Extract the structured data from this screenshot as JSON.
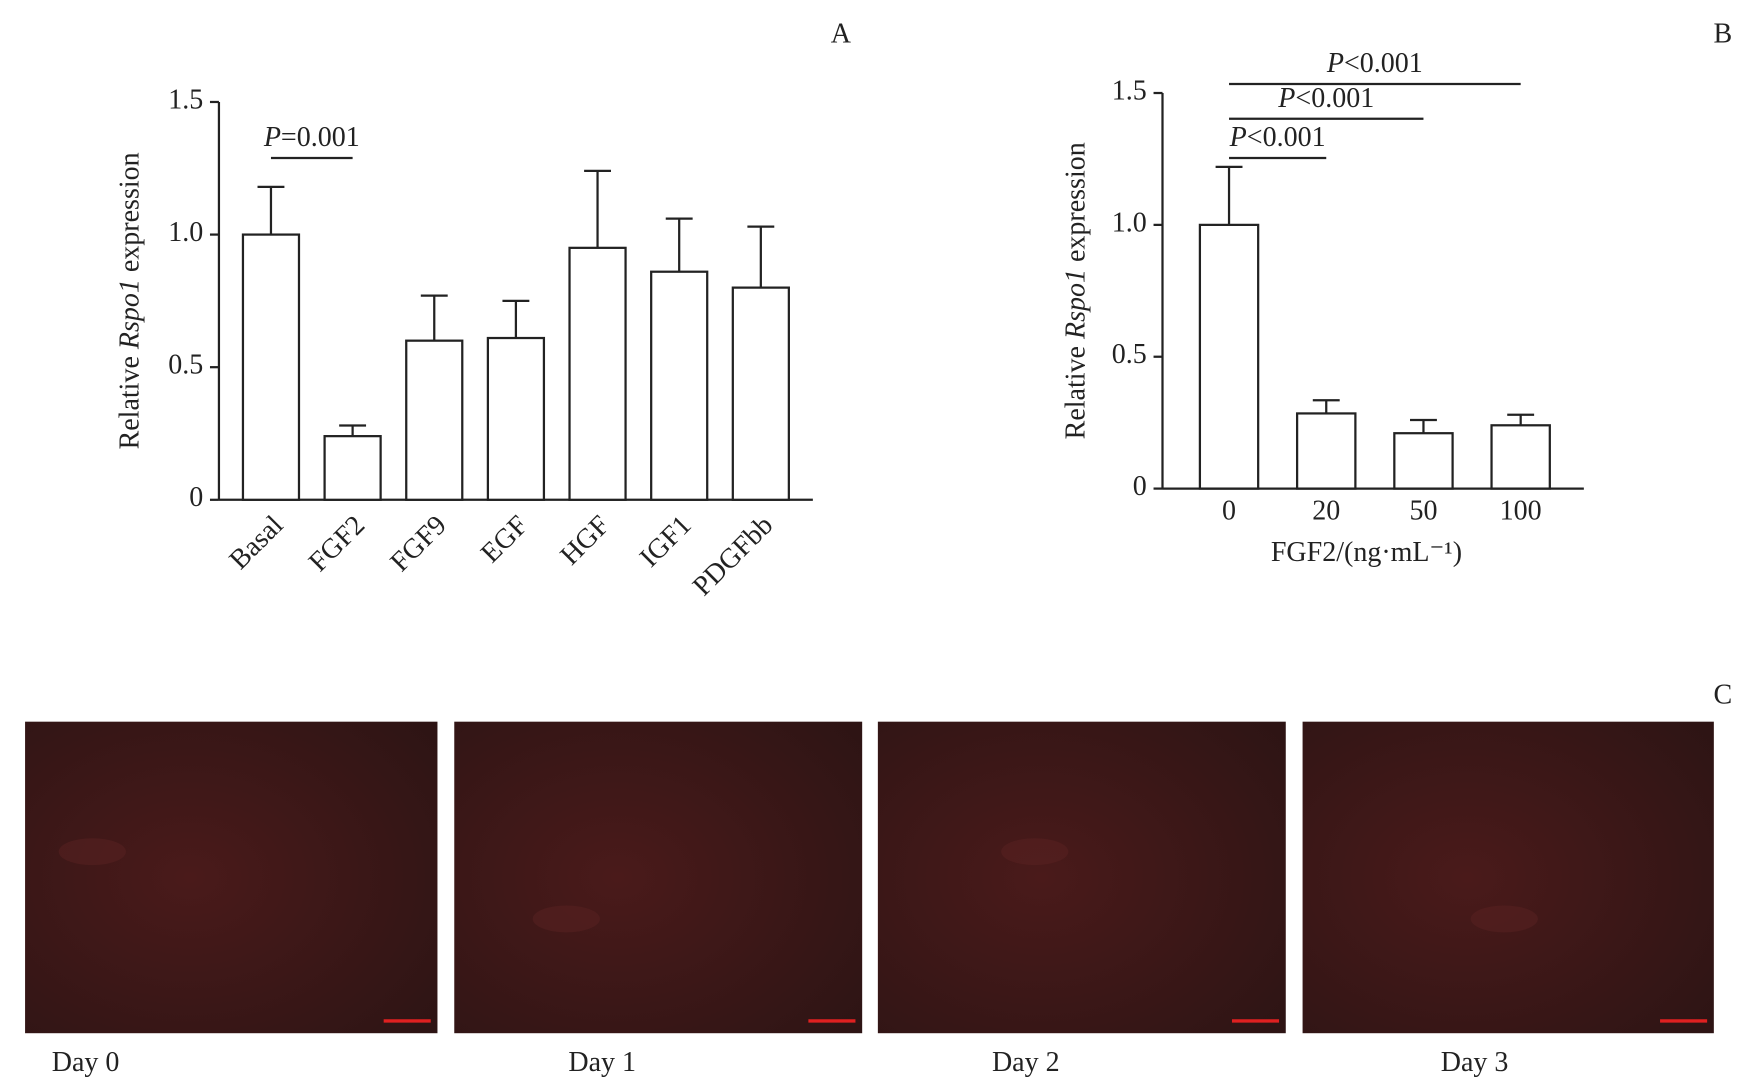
{
  "chart_data": [
    {
      "type": "bar",
      "panel_label": "A",
      "ylabel": [
        "Relative ",
        "Rspo1",
        " expression"
      ],
      "categories": [
        "Basal",
        "FGF2",
        "FGF9",
        "EGF",
        "HGF",
        "IGF1",
        "PDGFbb"
      ],
      "values": [
        1.0,
        0.24,
        0.6,
        0.61,
        0.95,
        0.86,
        0.8
      ],
      "errors": [
        0.18,
        0.04,
        0.17,
        0.14,
        0.29,
        0.2,
        0.23
      ],
      "color": "#ffffff",
      "ylim": [
        0,
        1.5
      ],
      "yticks": [
        0,
        0.5,
        {
          "value": 1,
          "label": "1.0"
        },
        1.5
      ],
      "annotations": [
        {
          "label": [
            "P",
            "=0.001"
          ],
          "between": [
            "Basal",
            "FGF2"
          ]
        }
      ]
    },
    {
      "type": "bar",
      "panel_label": "B",
      "ylabel": [
        "Relative ",
        "Rspo1",
        " expression"
      ],
      "xlabel": "FGF2/(ng·mL⁻¹)",
      "categories": [
        "0",
        "20",
        "50",
        "100"
      ],
      "values": [
        1.0,
        0.285,
        0.21,
        0.24
      ],
      "errors": [
        0.22,
        0.05,
        0.05,
        0.04
      ],
      "color": "#ffffff",
      "ylim": [
        0,
        1.5
      ],
      "yticks": [
        0,
        0.5,
        {
          "value": 1,
          "label": "1.0"
        },
        1.5
      ],
      "annotations": [
        {
          "label": [
            "P",
            "<0.001"
          ],
          "between": [
            "0",
            "20"
          ]
        },
        {
          "label": [
            "P",
            "<0.001"
          ],
          "between": [
            "0",
            "50"
          ]
        },
        {
          "label": [
            "P",
            "<0.001"
          ],
          "between": [
            "0",
            "100"
          ]
        }
      ]
    }
  ],
  "panel_c": {
    "label": "C",
    "images": [
      {
        "caption": "Day 0"
      },
      {
        "caption": "Day 1"
      },
      {
        "caption": "Day 2"
      },
      {
        "caption": "Day 3"
      }
    ]
  }
}
